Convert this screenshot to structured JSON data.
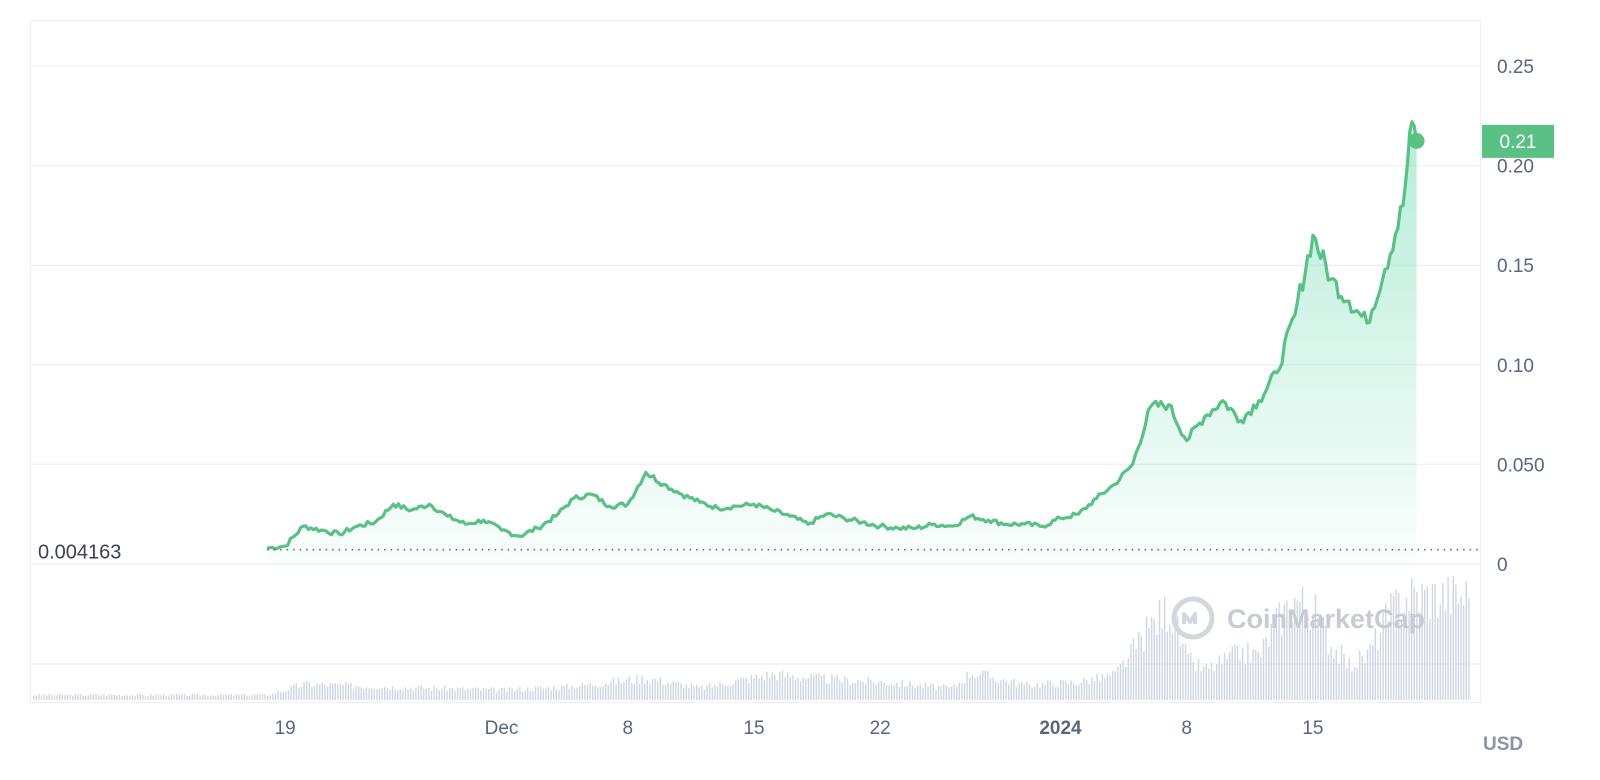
{
  "chart_data": {
    "type": "area",
    "currency": "USD",
    "y_axis": {
      "ticks": [
        {
          "value": 0,
          "label": "0"
        },
        {
          "value": 0.05,
          "label": "0.050"
        },
        {
          "value": 0.1,
          "label": "0.10"
        },
        {
          "value": 0.15,
          "label": "0.15"
        },
        {
          "value": 0.2,
          "label": "0.20"
        },
        {
          "value": 0.25,
          "label": "0.25"
        }
      ],
      "ylim": [
        0,
        0.25
      ]
    },
    "x_axis": {
      "ticks": [
        {
          "date": "2023-11-19",
          "label": "19",
          "bold": false
        },
        {
          "date": "2023-12-01",
          "label": "Dec",
          "bold": false
        },
        {
          "date": "2023-12-08",
          "label": "8",
          "bold": false
        },
        {
          "date": "2023-12-15",
          "label": "15",
          "bold": false
        },
        {
          "date": "2023-12-22",
          "label": "22",
          "bold": false
        },
        {
          "date": "2024-01-01",
          "label": "2024",
          "bold": true
        },
        {
          "date": "2024-01-08",
          "label": "8",
          "bold": false
        },
        {
          "date": "2024-01-15",
          "label": "15",
          "bold": false
        }
      ],
      "xlim": [
        "2023-11-13",
        "2024-01-19"
      ]
    },
    "start_price": {
      "value": 0.004163,
      "label": "0.004163"
    },
    "current_price": {
      "value": 0.2124,
      "label": "0.21"
    },
    "series": [
      {
        "color": "#16c784",
        "points": [
          [
            "2023-11-18",
            0.008
          ],
          [
            "2023-11-19",
            0.009
          ],
          [
            "2023-11-20",
            0.019
          ],
          [
            "2023-11-21",
            0.017
          ],
          [
            "2023-11-22",
            0.015
          ],
          [
            "2023-11-23",
            0.019
          ],
          [
            "2023-11-24",
            0.021
          ],
          [
            "2023-11-25",
            0.03
          ],
          [
            "2023-11-26",
            0.027
          ],
          [
            "2023-11-27",
            0.03
          ],
          [
            "2023-11-28",
            0.024
          ],
          [
            "2023-11-29",
            0.02
          ],
          [
            "2023-11-30",
            0.022
          ],
          [
            "2023-12-01",
            0.017
          ],
          [
            "2023-12-02",
            0.014
          ],
          [
            "2023-12-03",
            0.018
          ],
          [
            "2023-12-04",
            0.024
          ],
          [
            "2023-12-05",
            0.033
          ],
          [
            "2023-12-06",
            0.035
          ],
          [
            "2023-12-07",
            0.029
          ],
          [
            "2023-12-08",
            0.03
          ],
          [
            "2023-12-09",
            0.046
          ],
          [
            "2023-12-10",
            0.04
          ],
          [
            "2023-12-11",
            0.035
          ],
          [
            "2023-12-12",
            0.031
          ],
          [
            "2023-12-13",
            0.028
          ],
          [
            "2023-12-14",
            0.029
          ],
          [
            "2023-12-15",
            0.03
          ],
          [
            "2023-12-16",
            0.027
          ],
          [
            "2023-12-17",
            0.024
          ],
          [
            "2023-12-18",
            0.02
          ],
          [
            "2023-12-19",
            0.025
          ],
          [
            "2023-12-20",
            0.023
          ],
          [
            "2023-12-21",
            0.021
          ],
          [
            "2023-12-22",
            0.019
          ],
          [
            "2023-12-23",
            0.018
          ],
          [
            "2023-12-24",
            0.018
          ],
          [
            "2023-12-25",
            0.02
          ],
          [
            "2023-12-26",
            0.019
          ],
          [
            "2023-12-27",
            0.024
          ],
          [
            "2023-12-28",
            0.022
          ],
          [
            "2023-12-29",
            0.02
          ],
          [
            "2023-12-30",
            0.02
          ],
          [
            "2023-12-31",
            0.019
          ],
          [
            "2024-01-01",
            0.023
          ],
          [
            "2024-01-02",
            0.025
          ],
          [
            "2024-01-03",
            0.033
          ],
          [
            "2024-01-04",
            0.04
          ],
          [
            "2024-01-05",
            0.05
          ],
          [
            "2024-01-06",
            0.079
          ],
          [
            "2024-01-07",
            0.08
          ],
          [
            "2024-01-08",
            0.062
          ],
          [
            "2024-01-09",
            0.074
          ],
          [
            "2024-01-10",
            0.082
          ],
          [
            "2024-01-11",
            0.072
          ],
          [
            "2024-01-12",
            0.082
          ],
          [
            "2024-01-13",
            0.096
          ],
          [
            "2024-01-14",
            0.125
          ],
          [
            "2024-01-15",
            0.165
          ],
          [
            "2024-01-16",
            0.143
          ],
          [
            "2024-01-17",
            0.132
          ],
          [
            "2024-01-18",
            0.121
          ],
          [
            "2024-01-19",
            0.148
          ],
          [
            "2024-01-20",
            0.18
          ],
          [
            "2024-01-20T12:00",
            0.222
          ],
          [
            "2024-01-20T18:00",
            0.2124
          ]
        ]
      }
    ],
    "volume": {
      "color": "#cfd6e4",
      "points": [
        [
          "2023-11-13",
          0.05
        ],
        [
          "2023-11-18",
          0.05
        ],
        [
          "2023-11-20",
          0.16
        ],
        [
          "2023-11-25",
          0.13
        ],
        [
          "2023-12-01",
          0.1
        ],
        [
          "2023-12-05",
          0.14
        ],
        [
          "2023-12-09",
          0.22
        ],
        [
          "2023-12-12",
          0.12
        ],
        [
          "2023-12-16",
          0.26
        ],
        [
          "2023-12-19",
          0.21
        ],
        [
          "2023-12-22",
          0.18
        ],
        [
          "2023-12-26",
          0.12
        ],
        [
          "2023-12-27",
          0.28
        ],
        [
          "2023-12-30",
          0.15
        ],
        [
          "2024-01-02",
          0.18
        ],
        [
          "2024-01-04",
          0.25
        ],
        [
          "2024-01-06",
          0.75
        ],
        [
          "2024-01-07",
          0.93
        ],
        [
          "2024-01-08",
          0.4
        ],
        [
          "2024-01-09",
          0.3
        ],
        [
          "2024-01-11",
          0.48
        ],
        [
          "2024-01-12",
          0.45
        ],
        [
          "2024-01-13",
          0.8
        ],
        [
          "2024-01-14",
          1.02
        ],
        [
          "2024-01-15",
          0.9
        ],
        [
          "2024-01-16",
          0.55
        ],
        [
          "2024-01-17",
          0.35
        ],
        [
          "2024-01-18",
          0.45
        ],
        [
          "2024-01-19",
          0.8
        ],
        [
          "2024-01-20",
          1.05
        ]
      ]
    },
    "grid": true,
    "watermark": "CoinMarketCap"
  }
}
